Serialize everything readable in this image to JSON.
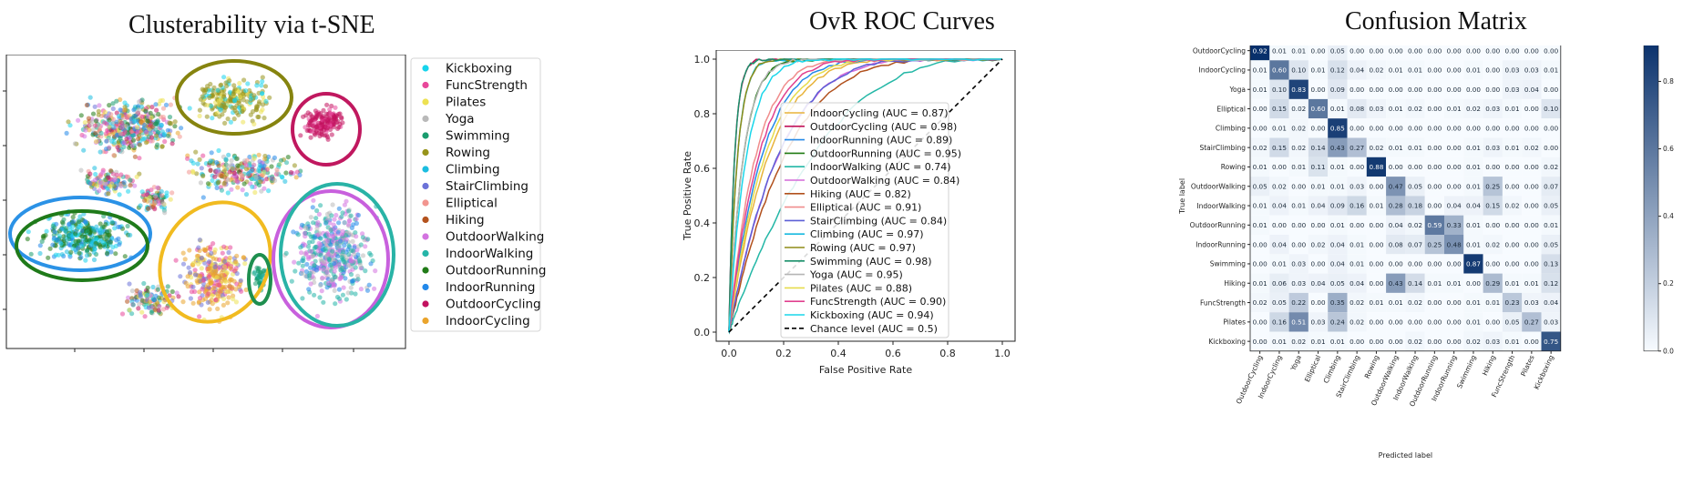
{
  "titles": {
    "tsne": "Clusterability via t-SNE",
    "roc": "OvR ROC Curves",
    "cm": "Confusion Matrix"
  },
  "chart_data": [
    {
      "type": "scatter",
      "title": "Clusterability via t-SNE",
      "legend_position": "right-outside",
      "legend": [
        {
          "name": "Kickboxing",
          "color": "#17d4ec"
        },
        {
          "name": "FuncStrength",
          "color": "#e8479a"
        },
        {
          "name": "Pilates",
          "color": "#ede152"
        },
        {
          "name": "Yoga",
          "color": "#b9b9b9"
        },
        {
          "name": "Swimming",
          "color": "#1a9c6e"
        },
        {
          "name": "Rowing",
          "color": "#97941b"
        },
        {
          "name": "Climbing",
          "color": "#1cbde0"
        },
        {
          "name": "StairClimbing",
          "color": "#6c72d8"
        },
        {
          "name": "Elliptical",
          "color": "#f2958f"
        },
        {
          "name": "Hiking",
          "color": "#b4531e"
        },
        {
          "name": "OutdoorWalking",
          "color": "#d373e0"
        },
        {
          "name": "IndoorWalking",
          "color": "#25b5a8"
        },
        {
          "name": "OutdoorRunning",
          "color": "#217b18"
        },
        {
          "name": "IndoorRunning",
          "color": "#2389ea"
        },
        {
          "name": "OutdoorCycling",
          "color": "#c2125f"
        },
        {
          "name": "IndoorCycling",
          "color": "#eaa42c"
        }
      ],
      "highlight_ellipses": [
        {
          "cluster": "Rowing",
          "color": "#86840f"
        },
        {
          "cluster": "OutdoorCycling",
          "color": "#c0185f"
        },
        {
          "cluster": "IndoorRunning",
          "color": "#2b92e6"
        },
        {
          "cluster": "OutdoorRunning",
          "color": "#1f7a1a"
        },
        {
          "cluster": "IndoorCycling",
          "color": "#f1bb20"
        },
        {
          "cluster": "Swimming",
          "color": "#1e8f4f"
        },
        {
          "cluster": "OutdoorWalking",
          "color": "#c860dd"
        },
        {
          "cluster": "IndoorWalking",
          "color": "#29b3a6"
        }
      ]
    },
    {
      "type": "line",
      "title": "OvR ROC Curves",
      "xlabel": "False Positive Rate",
      "ylabel": "True Positive Rate",
      "xlim": [
        0,
        1
      ],
      "ylim": [
        0,
        1
      ],
      "xticks": [
        "0.0",
        "0.2",
        "0.4",
        "0.6",
        "0.8",
        "1.0"
      ],
      "yticks": [
        "0.0",
        "0.2",
        "0.4",
        "0.6",
        "0.8",
        "1.0"
      ],
      "legend_position": "lower-right",
      "series": [
        {
          "name": "IndoorCycling (AUC = 0.87)",
          "auc": 0.87,
          "color": "#e8b33a"
        },
        {
          "name": "OutdoorCycling (AUC = 0.98)",
          "auc": 0.98,
          "color": "#c2135a"
        },
        {
          "name": "IndoorRunning (AUC = 0.89)",
          "auc": 0.89,
          "color": "#2489e8"
        },
        {
          "name": "OutdoorRunning (AUC = 0.95)",
          "auc": 0.95,
          "color": "#1f7a12"
        },
        {
          "name": "IndoorWalking (AUC = 0.74)",
          "auc": 0.74,
          "color": "#23b7a6"
        },
        {
          "name": "OutdoorWalking (AUC = 0.84)",
          "auc": 0.84,
          "color": "#d46ad9"
        },
        {
          "name": "Hiking (AUC = 0.82)",
          "auc": 0.82,
          "color": "#b1501c"
        },
        {
          "name": "Elliptical (AUC = 0.91)",
          "auc": 0.91,
          "color": "#f08c8c"
        },
        {
          "name": "StairClimbing (AUC = 0.84)",
          "auc": 0.84,
          "color": "#5c5fd6"
        },
        {
          "name": "Climbing (AUC = 0.97)",
          "auc": 0.97,
          "color": "#17b9df"
        },
        {
          "name": "Rowing (AUC = 0.97)",
          "auc": 0.97,
          "color": "#8e8c17"
        },
        {
          "name": "Swimming (AUC = 0.98)",
          "auc": 0.98,
          "color": "#19906a"
        },
        {
          "name": "Yoga (AUC = 0.95)",
          "auc": 0.95,
          "color": "#b5b5b5"
        },
        {
          "name": "Pilates (AUC = 0.88)",
          "auc": 0.88,
          "color": "#e6dc4c"
        },
        {
          "name": "FuncStrength (AUC = 0.90)",
          "auc": 0.9,
          "color": "#e0408f"
        },
        {
          "name": "Kickboxing (AUC = 0.94)",
          "auc": 0.94,
          "color": "#19d6ea"
        },
        {
          "name": "Chance level (AUC = 0.5)",
          "auc": 0.5,
          "color": "#000000",
          "dashed": true
        }
      ]
    },
    {
      "type": "heatmap",
      "title": "Confusion Matrix",
      "xlabel": "Predicted label",
      "ylabel": "True label",
      "colormap": "Blues",
      "colorbar_ticks": [
        "0.0",
        "0.2",
        "0.4",
        "0.6",
        "0.8"
      ],
      "labels": [
        "OutdoorCycling",
        "IndoorCycling",
        "Yoga",
        "Elliptical",
        "Climbing",
        "StairClimbing",
        "Rowing",
        "OutdoorWalking",
        "IndoorWalking",
        "OutdoorRunning",
        "IndoorRunning",
        "Swimming",
        "Hiking",
        "FuncStrength",
        "Pilates",
        "Kickboxing"
      ],
      "matrix": [
        [
          "0.92",
          "0.01",
          "0.01",
          "0.00",
          "0.05",
          "0.00",
          "0.00",
          "0.00",
          "0.00",
          "0.00",
          "0.00",
          "0.00",
          "0.00",
          "0.00",
          "0.00",
          "0.00"
        ],
        [
          "0.01",
          "0.60",
          "0.10",
          "0.01",
          "0.12",
          "0.04",
          "0.02",
          "0.01",
          "0.01",
          "0.00",
          "0.00",
          "0.01",
          "0.00",
          "0.03",
          "0.03",
          "0.01"
        ],
        [
          "0.01",
          "0.10",
          "0.83",
          "0.00",
          "0.09",
          "0.00",
          "0.00",
          "0.00",
          "0.00",
          "0.00",
          "0.00",
          "0.00",
          "0.00",
          "0.03",
          "0.04",
          "0.00"
        ],
        [
          "0.00",
          "0.15",
          "0.02",
          "0.60",
          "0.01",
          "0.08",
          "0.03",
          "0.01",
          "0.02",
          "0.00",
          "0.01",
          "0.02",
          "0.03",
          "0.01",
          "0.00",
          "0.10"
        ],
        [
          "0.00",
          "0.01",
          "0.02",
          "0.00",
          "0.85",
          "0.00",
          "0.00",
          "0.00",
          "0.00",
          "0.00",
          "0.00",
          "0.00",
          "0.00",
          "0.00",
          "0.00",
          "0.00"
        ],
        [
          "0.02",
          "0.15",
          "0.02",
          "0.14",
          "0.43",
          "0.27",
          "0.02",
          "0.01",
          "0.01",
          "0.00",
          "0.00",
          "0.01",
          "0.03",
          "0.01",
          "0.02",
          "0.00"
        ],
        [
          "0.01",
          "0.00",
          "0.01",
          "0.11",
          "0.01",
          "0.00",
          "0.88",
          "0.00",
          "0.00",
          "0.00",
          "0.00",
          "0.01",
          "0.00",
          "0.00",
          "0.00",
          "0.02"
        ],
        [
          "0.05",
          "0.02",
          "0.00",
          "0.01",
          "0.01",
          "0.03",
          "0.00",
          "0.47",
          "0.05",
          "0.00",
          "0.00",
          "0.01",
          "0.25",
          "0.00",
          "0.00",
          "0.07"
        ],
        [
          "0.01",
          "0.04",
          "0.01",
          "0.04",
          "0.09",
          "0.16",
          "0.01",
          "0.28",
          "0.18",
          "0.00",
          "0.04",
          "0.04",
          "0.15",
          "0.02",
          "0.00",
          "0.05"
        ],
        [
          "0.01",
          "0.00",
          "0.00",
          "0.00",
          "0.01",
          "0.00",
          "0.00",
          "0.04",
          "0.02",
          "0.59",
          "0.33",
          "0.01",
          "0.00",
          "0.00",
          "0.00",
          "0.01"
        ],
        [
          "0.00",
          "0.04",
          "0.00",
          "0.02",
          "0.04",
          "0.01",
          "0.00",
          "0.08",
          "0.07",
          "0.25",
          "0.48",
          "0.01",
          "0.02",
          "0.00",
          "0.00",
          "0.05"
        ],
        [
          "0.00",
          "0.01",
          "0.03",
          "0.00",
          "0.04",
          "0.01",
          "0.00",
          "0.00",
          "0.00",
          "0.00",
          "0.00",
          "0.87",
          "0.00",
          "0.00",
          "0.00",
          "0.13"
        ],
        [
          "0.01",
          "0.06",
          "0.03",
          "0.04",
          "0.05",
          "0.04",
          "0.00",
          "0.43",
          "0.14",
          "0.01",
          "0.01",
          "0.00",
          "0.29",
          "0.01",
          "0.01",
          "0.12"
        ],
        [
          "0.02",
          "0.05",
          "0.22",
          "0.00",
          "0.35",
          "0.02",
          "0.01",
          "0.01",
          "0.02",
          "0.00",
          "0.00",
          "0.01",
          "0.01",
          "0.23",
          "0.03",
          "0.04"
        ],
        [
          "0.00",
          "0.16",
          "0.51",
          "0.03",
          "0.24",
          "0.02",
          "0.00",
          "0.00",
          "0.00",
          "0.00",
          "0.00",
          "0.01",
          "0.00",
          "0.05",
          "0.27",
          "0.03"
        ],
        [
          "0.00",
          "0.01",
          "0.02",
          "0.01",
          "0.01",
          "0.00",
          "0.00",
          "0.00",
          "0.02",
          "0.00",
          "0.00",
          "0.02",
          "0.03",
          "0.01",
          "0.00",
          "0.75"
        ]
      ]
    }
  ]
}
